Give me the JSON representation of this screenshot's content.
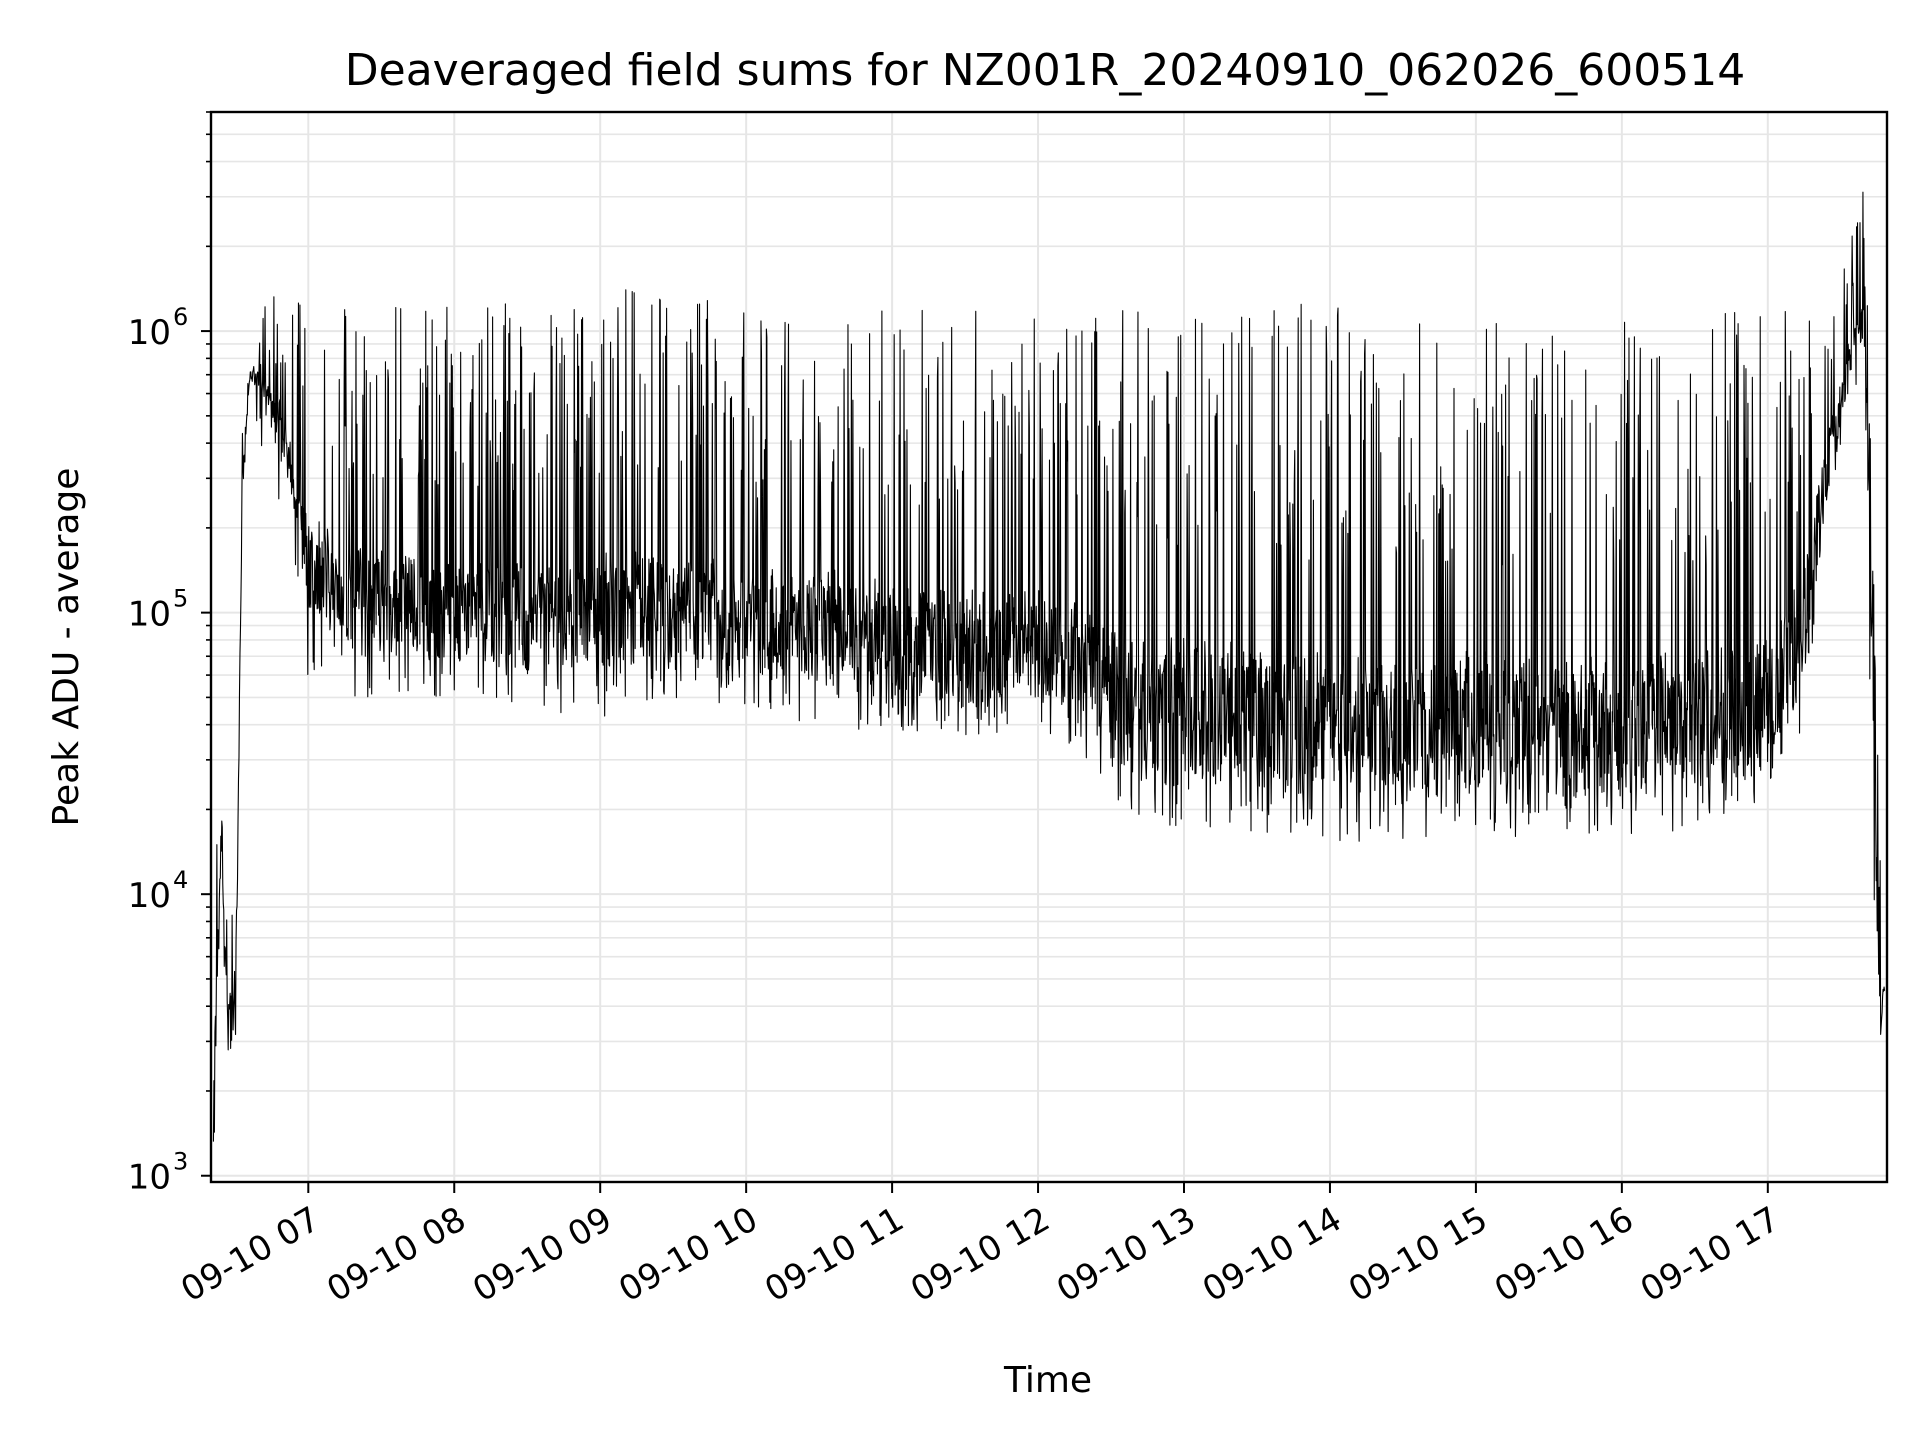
{
  "chart_data": {
    "type": "line",
    "title": "Deaveraged field sums for NZ001R_20240910_062026_600514",
    "xlabel": "Time",
    "ylabel": "Peak ADU - average",
    "yscale": "log",
    "grid": true,
    "line_color": "#000000",
    "grid_color": "#e6e6e6",
    "xlim": [
      "2024-09-10 06:20",
      "2024-09-10 17:49"
    ],
    "ylim": [
      950,
      6000000
    ],
    "x_ticks": [
      {
        "value": "2024-09-10 07:00",
        "label": "09-10 07"
      },
      {
        "value": "2024-09-10 08:00",
        "label": "09-10 08"
      },
      {
        "value": "2024-09-10 09:00",
        "label": "09-10 09"
      },
      {
        "value": "2024-09-10 10:00",
        "label": "09-10 10"
      },
      {
        "value": "2024-09-10 11:00",
        "label": "09-10 11"
      },
      {
        "value": "2024-09-10 12:00",
        "label": "09-10 12"
      },
      {
        "value": "2024-09-10 13:00",
        "label": "09-10 13"
      },
      {
        "value": "2024-09-10 14:00",
        "label": "09-10 14"
      },
      {
        "value": "2024-09-10 15:00",
        "label": "09-10 15"
      },
      {
        "value": "2024-09-10 16:00",
        "label": "09-10 16"
      },
      {
        "value": "2024-09-10 17:00",
        "label": "09-10 17"
      }
    ],
    "y_ticks": [
      {
        "value": 1000,
        "base": "10",
        "exp": "3"
      },
      {
        "value": 10000,
        "base": "10",
        "exp": "4"
      },
      {
        "value": 100000,
        "base": "10",
        "exp": "5"
      },
      {
        "value": 1000000,
        "base": "10",
        "exp": "6"
      }
    ],
    "series": [
      {
        "style": "noisy envelope",
        "x": [
          "2024-09-10 06:21",
          "2024-09-10 06:24",
          "2024-09-10 06:27",
          "2024-09-10 06:30",
          "2024-09-10 06:33",
          "2024-09-10 06:36",
          "2024-09-10 06:40",
          "2024-09-10 06:45",
          "2024-09-10 06:50",
          "2024-09-10 06:55",
          "2024-09-10 07:00",
          "2024-09-10 07:15",
          "2024-09-10 07:30",
          "2024-09-10 08:00",
          "2024-09-10 08:30",
          "2024-09-10 09:00",
          "2024-09-10 09:30",
          "2024-09-10 10:00",
          "2024-09-10 10:30",
          "2024-09-10 11:00",
          "2024-09-10 11:30",
          "2024-09-10 12:00",
          "2024-09-10 12:15",
          "2024-09-10 12:30",
          "2024-09-10 12:45",
          "2024-09-10 13:00",
          "2024-09-10 13:30",
          "2024-09-10 14:00",
          "2024-09-10 14:30",
          "2024-09-10 15:00",
          "2024-09-10 15:30",
          "2024-09-10 16:00",
          "2024-09-10 16:30",
          "2024-09-10 17:00",
          "2024-09-10 17:15",
          "2024-09-10 17:25",
          "2024-09-10 17:35",
          "2024-09-10 17:40",
          "2024-09-10 17:43",
          "2024-09-10 17:46",
          "2024-09-10 17:48"
        ],
        "baseline": [
          1000,
          15000,
          3500,
          3000,
          300000,
          700000,
          750000,
          500000,
          400000,
          250000,
          120000,
          90000,
          80000,
          75000,
          70000,
          72000,
          70000,
          68000,
          65000,
          58000,
          52000,
          55000,
          48000,
          35000,
          30000,
          28000,
          27000,
          26000,
          25000,
          26000,
          25000,
          25000,
          26000,
          28000,
          60000,
          300000,
          800000,
          1000000,
          80000,
          4000,
          5000
        ],
        "peak": [
          30000,
          24000,
          8000,
          30000,
          500000,
          900000,
          1100000,
          1400000,
          1300000,
          1300000,
          1350000,
          1350000,
          1350000,
          1350000,
          1400000,
          1400000,
          1550000,
          1200000,
          1150000,
          1250000,
          1250000,
          1100000,
          1000000,
          1200000,
          1250000,
          1300000,
          1300000,
          1250000,
          1250000,
          1200000,
          1100000,
          1100000,
          1150000,
          1300000,
          1400000,
          1500000,
          2400000,
          4000000,
          300000,
          15000,
          7000
        ],
        "floor": [
          950,
          12000,
          2200,
          2500,
          250000,
          600000,
          400000,
          300000,
          200000,
          100000,
          50000,
          48000,
          50000,
          50000,
          45000,
          40000,
          45000,
          45000,
          38000,
          36000,
          35000,
          40000,
          32000,
          22000,
          18000,
          17000,
          16000,
          15000,
          15500,
          16000,
          16000,
          16000,
          17000,
          22000,
          40000,
          250000,
          600000,
          800000,
          3000,
          1400,
          2600
        ]
      }
    ]
  }
}
